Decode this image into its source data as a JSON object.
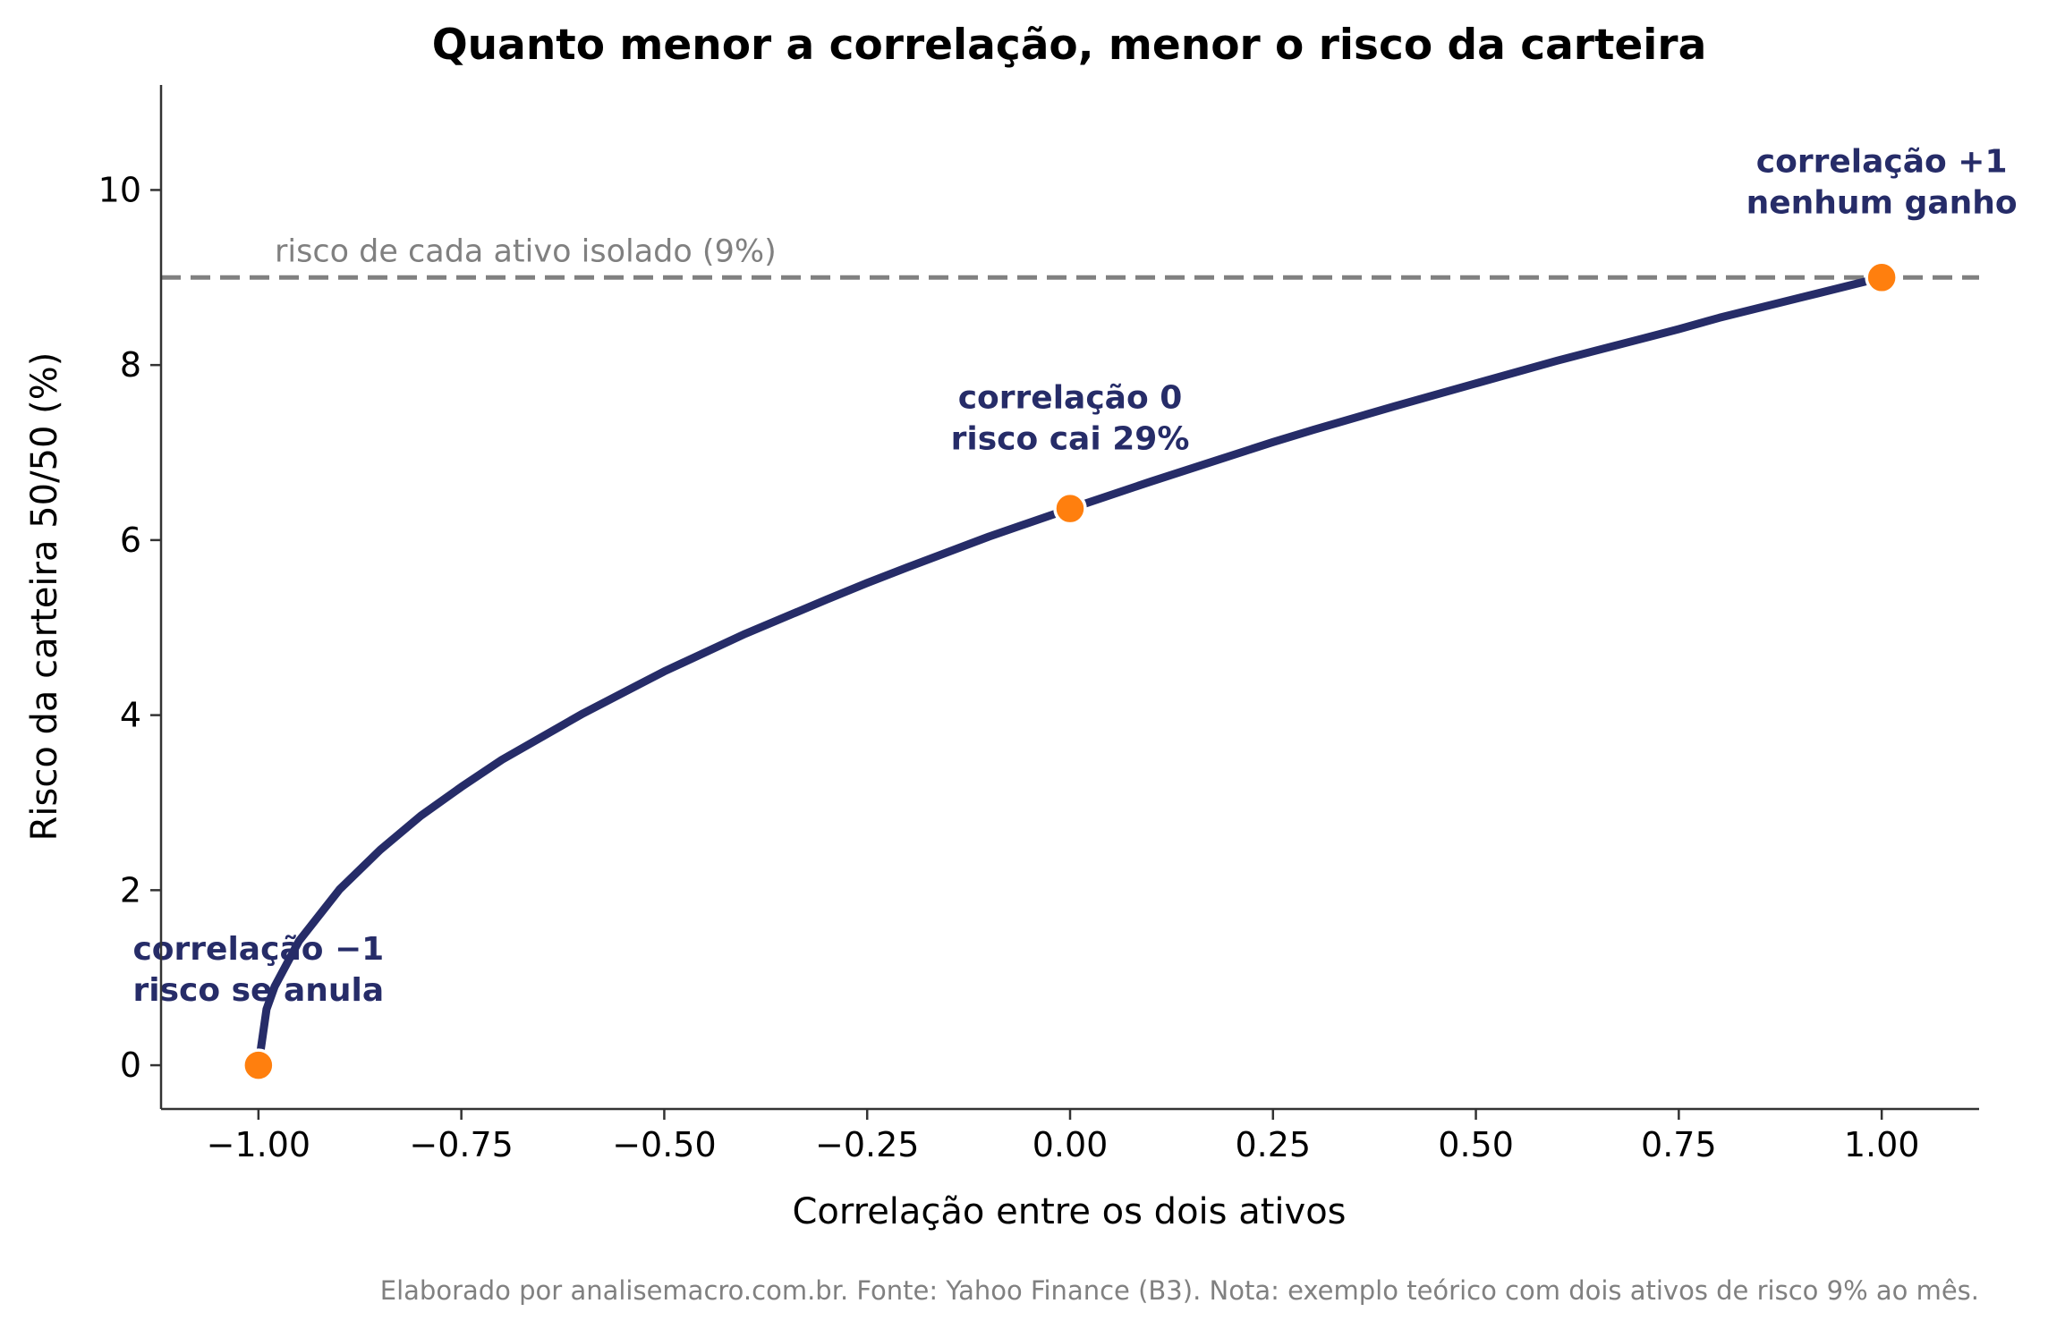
{
  "chart_data": {
    "type": "line",
    "title": "Quanto menor a correlação, menor o risco da carteira",
    "xlabel": "Correlação entre os dois ativos",
    "ylabel": "Risco da carteira 50/50 (%)",
    "xlim": [
      -1.12,
      1.12
    ],
    "ylim": [
      -0.5,
      11.2
    ],
    "x_ticks": [
      -1.0,
      -0.75,
      -0.5,
      -0.25,
      0.0,
      0.25,
      0.5,
      0.75,
      1.0
    ],
    "x_tick_labels": [
      "−1.00",
      "−0.75",
      "−0.50",
      "−0.25",
      "0.00",
      "0.25",
      "0.50",
      "0.75",
      "1.00"
    ],
    "y_ticks": [
      0,
      2,
      4,
      6,
      8,
      10
    ],
    "y_tick_labels": [
      "0",
      "2",
      "4",
      "6",
      "8",
      "10"
    ],
    "series": [
      {
        "color": "#262c68",
        "x": [
          -1.0,
          -0.99,
          -0.98,
          -0.95,
          -0.9,
          -0.85,
          -0.8,
          -0.75,
          -0.7,
          -0.6,
          -0.5,
          -0.4,
          -0.3,
          -0.25,
          -0.2,
          -0.1,
          0.0,
          0.1,
          0.2,
          0.25,
          0.3,
          0.4,
          0.5,
          0.6,
          0.7,
          0.75,
          0.8,
          0.9,
          1.0
        ],
        "y": [
          0.0,
          0.64,
          0.9,
          1.42,
          2.01,
          2.46,
          2.85,
          3.18,
          3.49,
          4.02,
          4.5,
          4.93,
          5.32,
          5.51,
          5.69,
          6.04,
          6.36,
          6.67,
          6.97,
          7.12,
          7.26,
          7.53,
          7.79,
          8.05,
          8.29,
          8.41,
          8.54,
          8.77,
          9.0
        ]
      }
    ],
    "reference_line": {
      "y": 9,
      "color": "#808080",
      "label": "risco de cada ativo isolado (9%)"
    },
    "highlight_points": [
      {
        "x": -1.0,
        "y": 0.0,
        "color": "#ff7f0e",
        "label_lines": [
          "correlação −1",
          "risco se anula"
        ]
      },
      {
        "x": 0.0,
        "y": 6.36,
        "color": "#ff7f0e",
        "label_lines": [
          "correlação 0",
          "risco cai 29%"
        ]
      },
      {
        "x": 1.0,
        "y": 9.0,
        "color": "#ff7f0e",
        "label_lines": [
          "correlação +1",
          "nenhum ganho"
        ]
      }
    ],
    "grid": false,
    "legend": "none"
  },
  "footer": "Elaborado por analisemacro.com.br. Fonte: Yahoo Finance (B3). Nota: exemplo teórico com dois ativos de risco 9% ao mês."
}
